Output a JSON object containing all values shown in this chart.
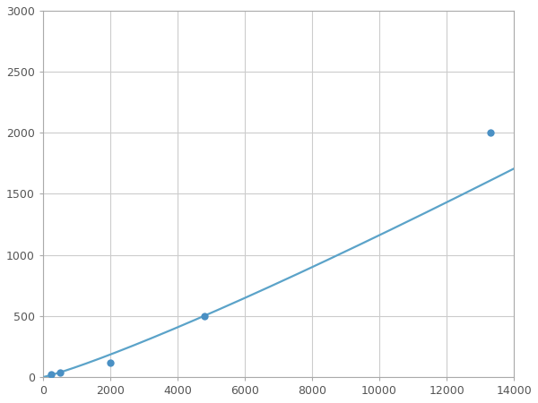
{
  "x_points": [
    250,
    500,
    2000,
    4800,
    13300
  ],
  "y_points": [
    20,
    40,
    120,
    500,
    2000
  ],
  "line_color": "#5ba3c9",
  "marker_color": "#4a90c4",
  "marker_size": 6,
  "line_width": 1.6,
  "xlim": [
    0,
    14000
  ],
  "ylim": [
    0,
    3000
  ],
  "xticks": [
    0,
    2000,
    4000,
    6000,
    8000,
    10000,
    12000,
    14000
  ],
  "yticks": [
    0,
    500,
    1000,
    1500,
    2000,
    2500,
    3000
  ],
  "grid_color": "#cccccc",
  "background_color": "#ffffff",
  "spine_color": "#aaaaaa",
  "tick_label_color": "#555555",
  "tick_label_size": 9
}
